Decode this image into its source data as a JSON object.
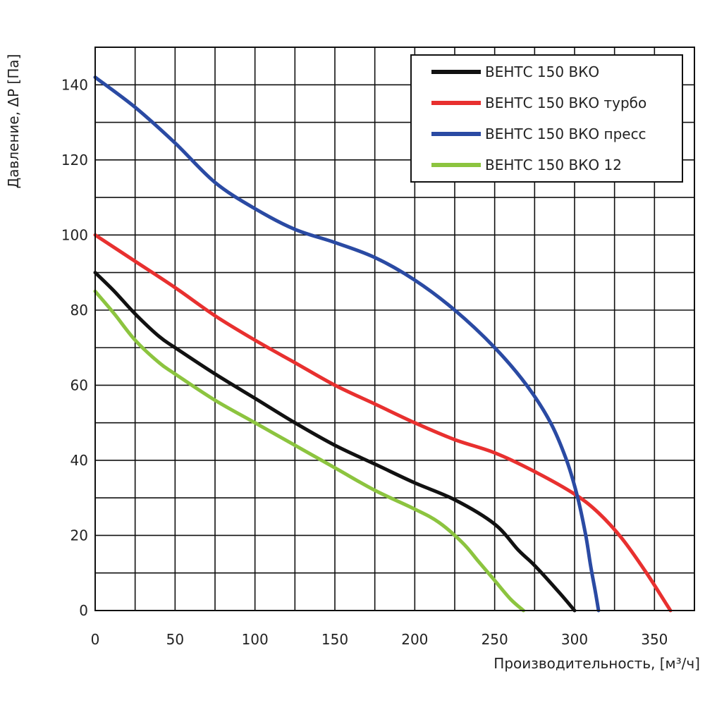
{
  "chart_data": {
    "type": "line",
    "xlabel": "Производительность, [м³/ч]",
    "ylabel": "Давление, ΔP [Па]",
    "xlim": [
      0,
      375
    ],
    "ylim": [
      0,
      150
    ],
    "x_ticks": [
      0,
      50,
      100,
      150,
      200,
      250,
      300,
      350
    ],
    "y_ticks": [
      0,
      20,
      40,
      60,
      80,
      100,
      120,
      140
    ],
    "x_grid_step": 25,
    "y_grid_step": 10,
    "grid": true,
    "legend_position": "top-right",
    "series": [
      {
        "name": "ВЕНТС 150 ВКО",
        "color": "#111111",
        "points": [
          [
            0,
            90
          ],
          [
            12,
            85
          ],
          [
            25,
            79
          ],
          [
            40,
            73
          ],
          [
            50,
            70
          ],
          [
            75,
            63
          ],
          [
            100,
            56.5
          ],
          [
            125,
            50
          ],
          [
            150,
            44
          ],
          [
            175,
            39
          ],
          [
            200,
            34
          ],
          [
            225,
            29.5
          ],
          [
            250,
            23
          ],
          [
            265,
            16
          ],
          [
            275,
            12
          ],
          [
            290,
            5
          ],
          [
            300,
            0
          ]
        ]
      },
      {
        "name": "ВЕНТС 150 ВКО турбо",
        "color": "#e8302f",
        "points": [
          [
            0,
            100
          ],
          [
            25,
            93
          ],
          [
            50,
            86
          ],
          [
            75,
            78.5
          ],
          [
            100,
            72
          ],
          [
            125,
            66
          ],
          [
            150,
            60
          ],
          [
            175,
            55
          ],
          [
            200,
            50
          ],
          [
            225,
            45.5
          ],
          [
            250,
            42
          ],
          [
            275,
            37
          ],
          [
            300,
            31
          ],
          [
            315,
            26
          ],
          [
            330,
            19
          ],
          [
            345,
            10
          ],
          [
            357,
            2
          ],
          [
            360,
            0
          ]
        ]
      },
      {
        "name": "ВЕНТС 150 ВКО пресс",
        "color": "#2a4aa3",
        "points": [
          [
            0,
            142
          ],
          [
            25,
            134
          ],
          [
            50,
            124.5
          ],
          [
            75,
            114
          ],
          [
            100,
            107
          ],
          [
            125,
            101.5
          ],
          [
            150,
            98
          ],
          [
            175,
            94
          ],
          [
            200,
            88
          ],
          [
            225,
            80
          ],
          [
            250,
            70
          ],
          [
            270,
            60
          ],
          [
            285,
            50
          ],
          [
            295,
            40
          ],
          [
            302,
            30
          ],
          [
            307,
            20
          ],
          [
            310,
            12
          ],
          [
            313,
            5
          ],
          [
            315,
            0
          ]
        ]
      },
      {
        "name": "ВЕНТС 150 ВКО 12",
        "color": "#8cc43f",
        "points": [
          [
            0,
            85
          ],
          [
            12,
            79
          ],
          [
            25,
            72
          ],
          [
            40,
            66
          ],
          [
            50,
            63
          ],
          [
            75,
            56
          ],
          [
            100,
            50
          ],
          [
            125,
            44
          ],
          [
            150,
            38
          ],
          [
            175,
            32
          ],
          [
            200,
            27
          ],
          [
            215,
            23.5
          ],
          [
            230,
            18
          ],
          [
            240,
            13
          ],
          [
            250,
            8
          ],
          [
            260,
            3
          ],
          [
            268,
            0
          ]
        ]
      }
    ]
  }
}
